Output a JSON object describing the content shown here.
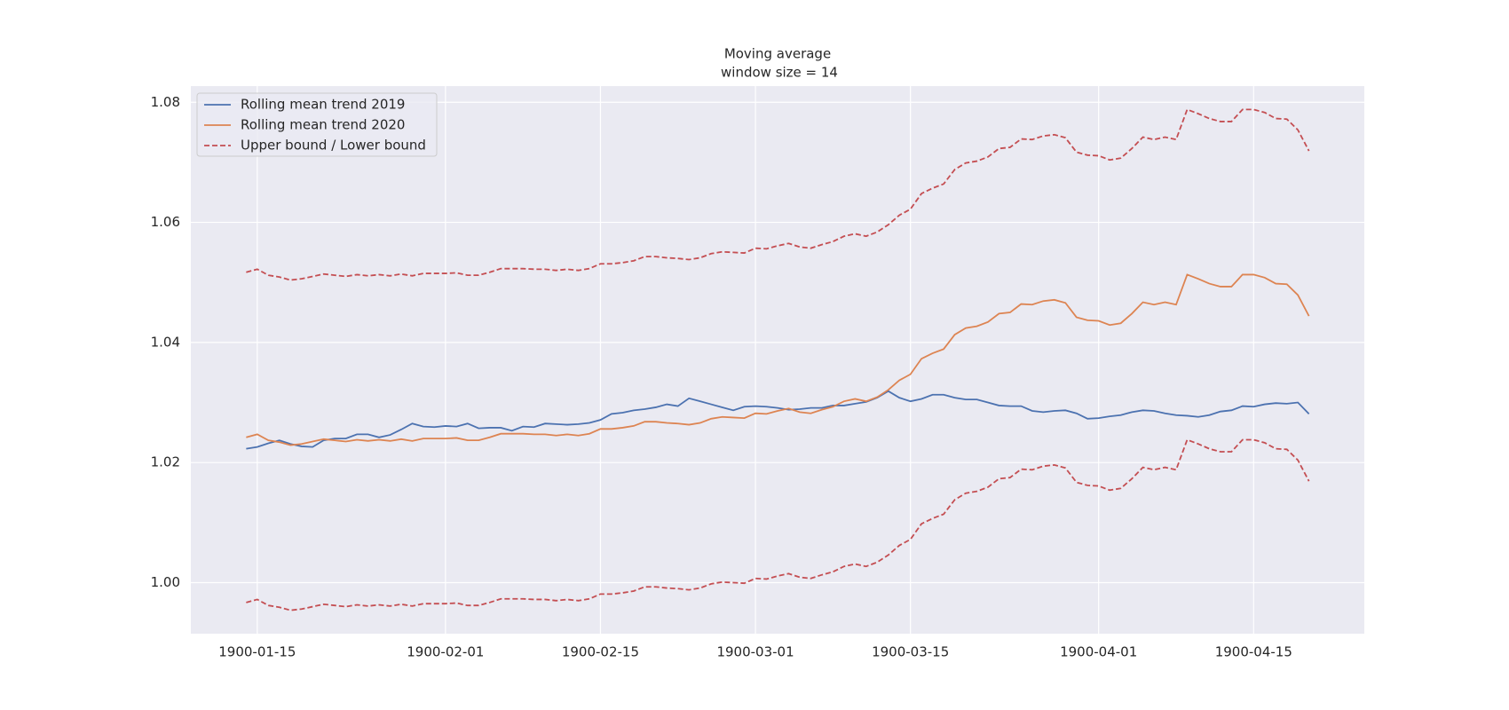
{
  "chart_data": {
    "type": "line",
    "title": "Moving average",
    "subtitle": "window size = 14",
    "grid": true,
    "legend": "upper left",
    "x": [
      "1900-01-14",
      "1900-01-15",
      "1900-01-16",
      "1900-01-17",
      "1900-01-18",
      "1900-01-19",
      "1900-01-20",
      "1900-01-21",
      "1900-01-22",
      "1900-01-23",
      "1900-01-24",
      "1900-01-25",
      "1900-01-26",
      "1900-01-27",
      "1900-01-28",
      "1900-01-29",
      "1900-01-30",
      "1900-01-31",
      "1900-02-01",
      "1900-02-02",
      "1900-02-03",
      "1900-02-04",
      "1900-02-05",
      "1900-02-06",
      "1900-02-07",
      "1900-02-08",
      "1900-02-09",
      "1900-02-10",
      "1900-02-11",
      "1900-02-12",
      "1900-02-13",
      "1900-02-14",
      "1900-02-15",
      "1900-02-16",
      "1900-02-17",
      "1900-02-18",
      "1900-02-19",
      "1900-02-20",
      "1900-02-21",
      "1900-02-22",
      "1900-02-23",
      "1900-02-24",
      "1900-02-25",
      "1900-02-26",
      "1900-02-27",
      "1900-02-28",
      "1900-03-01",
      "1900-03-02",
      "1900-03-03",
      "1900-03-04",
      "1900-03-05",
      "1900-03-06",
      "1900-03-07",
      "1900-03-08",
      "1900-03-09",
      "1900-03-10",
      "1900-03-11",
      "1900-03-12",
      "1900-03-13",
      "1900-03-14",
      "1900-03-15",
      "1900-03-16",
      "1900-03-17",
      "1900-03-18",
      "1900-03-19",
      "1900-03-20",
      "1900-03-21",
      "1900-03-22",
      "1900-03-23",
      "1900-03-24",
      "1900-03-25",
      "1900-03-26",
      "1900-03-27",
      "1900-03-28",
      "1900-03-29",
      "1900-03-30",
      "1900-03-31",
      "1900-04-01",
      "1900-04-02",
      "1900-04-03",
      "1900-04-04",
      "1900-04-05",
      "1900-04-06",
      "1900-04-07",
      "1900-04-08",
      "1900-04-09",
      "1900-04-10",
      "1900-04-11",
      "1900-04-12",
      "1900-04-13",
      "1900-04-14",
      "1900-04-15",
      "1900-04-16",
      "1900-04-17",
      "1900-04-18",
      "1900-04-19",
      "1900-04-20"
    ],
    "xlim": [
      "1900-01-09",
      "1900-04-25"
    ],
    "xticks": [
      "1900-01-15",
      "1900-02-01",
      "1900-02-15",
      "1900-03-01",
      "1900-03-15",
      "1900-04-01",
      "1900-04-15"
    ],
    "ylim": [
      0.9915,
      1.0827
    ],
    "yticks": [
      {
        "value": 1,
        "label": "1.00"
      },
      1.02,
      1.04,
      1.06,
      1.08
    ],
    "series": [
      {
        "name": "Rolling mean trend 2019",
        "color": "#4c72b0",
        "values": [
          1.0223,
          1.0226,
          1.0232,
          1.0237,
          1.0231,
          1.0227,
          1.0226,
          1.0237,
          1.024,
          1.024,
          1.0247,
          1.0247,
          1.0242,
          1.0246,
          1.0255,
          1.0265,
          1.026,
          1.0259,
          1.0261,
          1.026,
          1.0265,
          1.0257,
          1.0258,
          1.0258,
          1.0253,
          1.026,
          1.0259,
          1.0265,
          1.0264,
          1.0263,
          1.0264,
          1.0266,
          1.0271,
          1.0281,
          1.0283,
          1.0287,
          1.0289,
          1.0292,
          1.0297,
          1.0294,
          1.0307,
          1.0302,
          1.0297,
          1.0292,
          1.0287,
          1.0293,
          1.0294,
          1.0293,
          1.0291,
          1.0288,
          1.0289,
          1.0291,
          1.0291,
          1.0295,
          1.0295,
          1.0298,
          1.0301,
          1.0308,
          1.0319,
          1.0308,
          1.0302,
          1.0306,
          1.0313,
          1.0313,
          1.0308,
          1.0305,
          1.0305,
          1.03,
          1.0295,
          1.0294,
          1.0294,
          1.0286,
          1.0284,
          1.0286,
          1.0287,
          1.0282,
          1.0273,
          1.0274,
          1.0277,
          1.0279,
          1.0284,
          1.0287,
          1.0286,
          1.0282,
          1.0279,
          1.0278,
          1.0276,
          1.0279,
          1.0285,
          1.0287,
          1.0294,
          1.0293,
          1.0297,
          1.0299,
          1.0298,
          1.03,
          1.0281
        ]
      },
      {
        "name": "Rolling mean trend 2020",
        "color": "#dd8452",
        "values": [
          1.0242,
          1.0247,
          1.0237,
          1.0234,
          1.0229,
          1.0231,
          1.0235,
          1.0239,
          1.0237,
          1.0235,
          1.0238,
          1.0236,
          1.0238,
          1.0236,
          1.0239,
          1.0236,
          1.024,
          1.024,
          1.024,
          1.0241,
          1.0237,
          1.0237,
          1.0242,
          1.0248,
          1.0248,
          1.0248,
          1.0247,
          1.0247,
          1.0245,
          1.0247,
          1.0245,
          1.0248,
          1.0256,
          1.0256,
          1.0258,
          1.0261,
          1.0268,
          1.0268,
          1.0266,
          1.0265,
          1.0263,
          1.0266,
          1.0273,
          1.0276,
          1.0275,
          1.0274,
          1.0282,
          1.0281,
          1.0286,
          1.029,
          1.0284,
          1.0282,
          1.0288,
          1.0293,
          1.0302,
          1.0306,
          1.0302,
          1.0309,
          1.0321,
          1.0337,
          1.0347,
          1.0373,
          1.0382,
          1.0389,
          1.0413,
          1.0424,
          1.0427,
          1.0434,
          1.0448,
          1.045,
          1.0464,
          1.0463,
          1.0469,
          1.0471,
          1.0466,
          1.0442,
          1.0437,
          1.0436,
          1.0429,
          1.0432,
          1.0448,
          1.0467,
          1.0463,
          1.0467,
          1.0463,
          1.0513,
          1.0506,
          1.0498,
          1.0493,
          1.0493,
          1.0513,
          1.0513,
          1.0508,
          1.0498,
          1.0497,
          1.0479,
          1.0444
        ]
      },
      {
        "name": "Upper bound / Lower bound",
        "color": "#c44e52",
        "dashed": true,
        "values": [
          1.0517,
          1.0522,
          1.0512,
          1.0509,
          1.0504,
          1.0506,
          1.051,
          1.0514,
          1.0512,
          1.051,
          1.0513,
          1.0511,
          1.0513,
          1.0511,
          1.0514,
          1.0511,
          1.0515,
          1.0515,
          1.0515,
          1.0516,
          1.0512,
          1.0512,
          1.0517,
          1.0523,
          1.0523,
          1.0523,
          1.0522,
          1.0522,
          1.052,
          1.0522,
          1.052,
          1.0523,
          1.0531,
          1.0531,
          1.0533,
          1.0536,
          1.0543,
          1.0543,
          1.0541,
          1.054,
          1.0538,
          1.0541,
          1.0548,
          1.0551,
          1.055,
          1.0549,
          1.0557,
          1.0556,
          1.0561,
          1.0565,
          1.0559,
          1.0557,
          1.0563,
          1.0568,
          1.0577,
          1.0581,
          1.0577,
          1.0584,
          1.0596,
          1.0612,
          1.0622,
          1.0648,
          1.0657,
          1.0664,
          1.0688,
          1.0699,
          1.0702,
          1.0709,
          1.0723,
          1.0725,
          1.0739,
          1.0738,
          1.0744,
          1.0746,
          1.0741,
          1.0717,
          1.0712,
          1.0711,
          1.0704,
          1.0707,
          1.0723,
          1.0742,
          1.0738,
          1.0742,
          1.0738,
          1.0788,
          1.0781,
          1.0773,
          1.0768,
          1.0768,
          1.0788,
          1.0788,
          1.0783,
          1.0773,
          1.0772,
          1.0754,
          1.0719
        ],
        "lower_values": [
          0.9967,
          0.9972,
          0.9962,
          0.9959,
          0.9954,
          0.9956,
          0.996,
          0.9964,
          0.9962,
          0.996,
          0.9963,
          0.9961,
          0.9963,
          0.9961,
          0.9964,
          0.9961,
          0.9965,
          0.9965,
          0.9965,
          0.9966,
          0.9962,
          0.9962,
          0.9967,
          0.9973,
          0.9973,
          0.9973,
          0.9972,
          0.9972,
          0.997,
          0.9972,
          0.997,
          0.9973,
          0.9981,
          0.9981,
          0.9983,
          0.9986,
          0.9993,
          0.9993,
          0.9991,
          0.999,
          0.9988,
          0.9991,
          0.9998,
          1.0001,
          1.0,
          0.9999,
          1.0007,
          1.0006,
          1.0011,
          1.0015,
          1.0009,
          1.0007,
          1.0013,
          1.0018,
          1.0027,
          1.0031,
          1.0027,
          1.0034,
          1.0046,
          1.0062,
          1.0072,
          1.0098,
          1.0107,
          1.0114,
          1.0138,
          1.0149,
          1.0152,
          1.0159,
          1.0173,
          1.0175,
          1.0189,
          1.0188,
          1.0194,
          1.0196,
          1.0191,
          1.0167,
          1.0162,
          1.0161,
          1.0154,
          1.0157,
          1.0173,
          1.0192,
          1.0188,
          1.0192,
          1.0188,
          1.0238,
          1.0231,
          1.0223,
          1.0218,
          1.0218,
          1.0238,
          1.0238,
          1.0233,
          1.0223,
          1.0222,
          1.0204,
          1.0169
        ]
      }
    ]
  }
}
